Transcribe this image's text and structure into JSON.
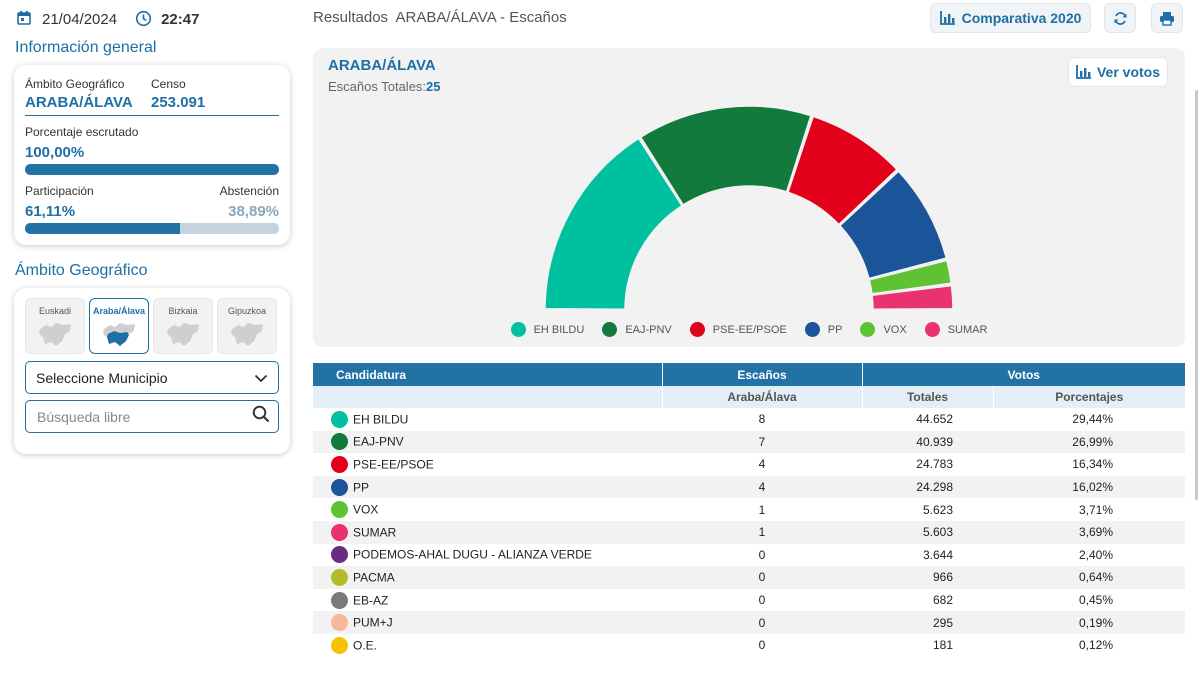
{
  "header": {
    "date": "21/04/2024",
    "time": "22:47",
    "title": "Resultados  ARABA/ÁLAVA - Escaños",
    "compare_label": "Comparativa 2020"
  },
  "info": {
    "section_title": "Información general",
    "ambito_label": "Ámbito Geográfico",
    "ambito_value": "ARABA/ÁLAVA",
    "censo_label": "Censo",
    "censo_value": "253.091",
    "escrutado_label": "Porcentaje escrutado",
    "escrutado_value": "100,00%",
    "escrutado_pct": 100,
    "participacion_label": "Participación",
    "participacion_value": "61,11%",
    "participacion_pct": 61.11,
    "abstencion_label": "Abstención",
    "abstencion_value": "38,89%"
  },
  "ambito": {
    "section_title": "Ámbito Geográfico",
    "regions": [
      {
        "name": "Euskadi",
        "active": false
      },
      {
        "name": "Araba/Álava",
        "active": true
      },
      {
        "name": "Bizkaia",
        "active": false
      },
      {
        "name": "Gipuzkoa",
        "active": false
      }
    ],
    "select_label": "Seleccione Municipio",
    "search_placeholder": "Búsqueda libre"
  },
  "chart_panel": {
    "title": "ARABA/ÁLAVA",
    "subtitle_label": "Escaños Totales:",
    "total_seats": "25",
    "votes_button": "Ver votos"
  },
  "chart_data": {
    "type": "pie",
    "total": 25,
    "series": [
      {
        "name": "EH BILDU",
        "value": 8,
        "color": "#00c19f"
      },
      {
        "name": "EAJ-PNV",
        "value": 7,
        "color": "#117a3c"
      },
      {
        "name": "PSE-EE/PSOE",
        "value": 4,
        "color": "#e2001a"
      },
      {
        "name": "PP",
        "value": 4,
        "color": "#1c5499"
      },
      {
        "name": "VOX",
        "value": 1,
        "color": "#5fc232"
      },
      {
        "name": "SUMAR",
        "value": 1,
        "color": "#e83272"
      }
    ]
  },
  "table": {
    "headers": {
      "candidatura": "Candidatura",
      "escanos": "Escaños",
      "votos": "Votos",
      "sub_escanos": "Araba/Álava",
      "sub_totales": "Totales",
      "sub_porcentajes": "Porcentajes"
    },
    "rows": [
      {
        "name": "EH BILDU",
        "color": "#00c19f",
        "seats": "8",
        "votes": "44.652",
        "pct": "29,44%"
      },
      {
        "name": "EAJ-PNV",
        "color": "#117a3c",
        "seats": "7",
        "votes": "40.939",
        "pct": "26,99%"
      },
      {
        "name": "PSE-EE/PSOE",
        "color": "#e2001a",
        "seats": "4",
        "votes": "24.783",
        "pct": "16,34%"
      },
      {
        "name": "PP",
        "color": "#1c5499",
        "seats": "4",
        "votes": "24.298",
        "pct": "16,02%"
      },
      {
        "name": "VOX",
        "color": "#5fc232",
        "seats": "1",
        "votes": "5.623",
        "pct": "3,71%"
      },
      {
        "name": "SUMAR",
        "color": "#e83272",
        "seats": "1",
        "votes": "5.603",
        "pct": "3,69%"
      },
      {
        "name": "PODEMOS-AHAL DUGU - ALIANZA VERDE",
        "color": "#6a2c82",
        "seats": "0",
        "votes": "3.644",
        "pct": "2,40%"
      },
      {
        "name": "PACMA",
        "color": "#b3bd2a",
        "seats": "0",
        "votes": "966",
        "pct": "0,64%"
      },
      {
        "name": "EB-AZ",
        "color": "#7a7a7a",
        "seats": "0",
        "votes": "682",
        "pct": "0,45%"
      },
      {
        "name": "PUM+J",
        "color": "#f5b999",
        "seats": "0",
        "votes": "295",
        "pct": "0,19%"
      },
      {
        "name": "O.E.",
        "color": "#f2c500",
        "seats": "0",
        "votes": "181",
        "pct": "0,12%"
      }
    ]
  }
}
